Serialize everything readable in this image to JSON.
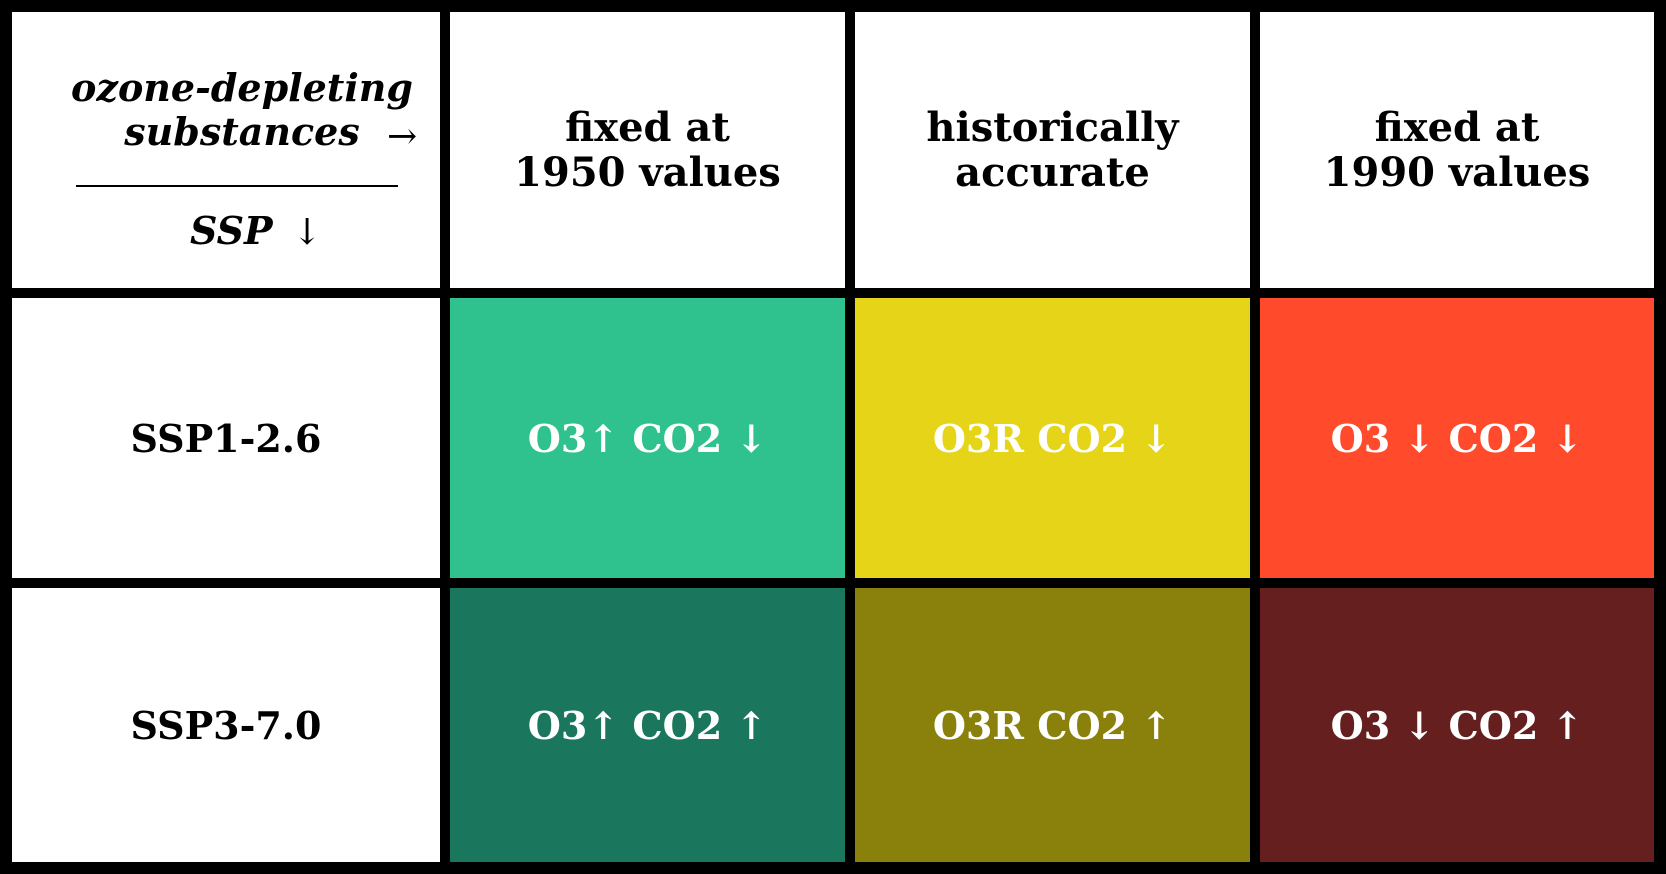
{
  "corner": {
    "top_label": "ozone-depleting\nsubstances",
    "right_arrow": "→",
    "bottom_label": "SSP",
    "down_arrow": "↓"
  },
  "columns": [
    {
      "label": "fixed at\n1950 values"
    },
    {
      "label": "historically\naccurate"
    },
    {
      "label": "fixed at\n1990 values"
    }
  ],
  "rows": [
    {
      "label": "SSP1-2.6",
      "cells": [
        {
          "text": "O3↑ CO2 ↓",
          "color": "#30c28e"
        },
        {
          "text": "O3R CO2 ↓",
          "color": "#e5d418"
        },
        {
          "text": "O3 ↓ CO2 ↓",
          "color": "#ff4a2b"
        }
      ]
    },
    {
      "label": "SSP3-7.0",
      "cells": [
        {
          "text": "O3↑ CO2 ↑",
          "color": "#1a775e"
        },
        {
          "text": "O3R CO2 ↑",
          "color": "#8a800c"
        },
        {
          "text": "O3 ↓ CO2 ↑",
          "color": "#651f1f"
        }
      ]
    }
  ]
}
